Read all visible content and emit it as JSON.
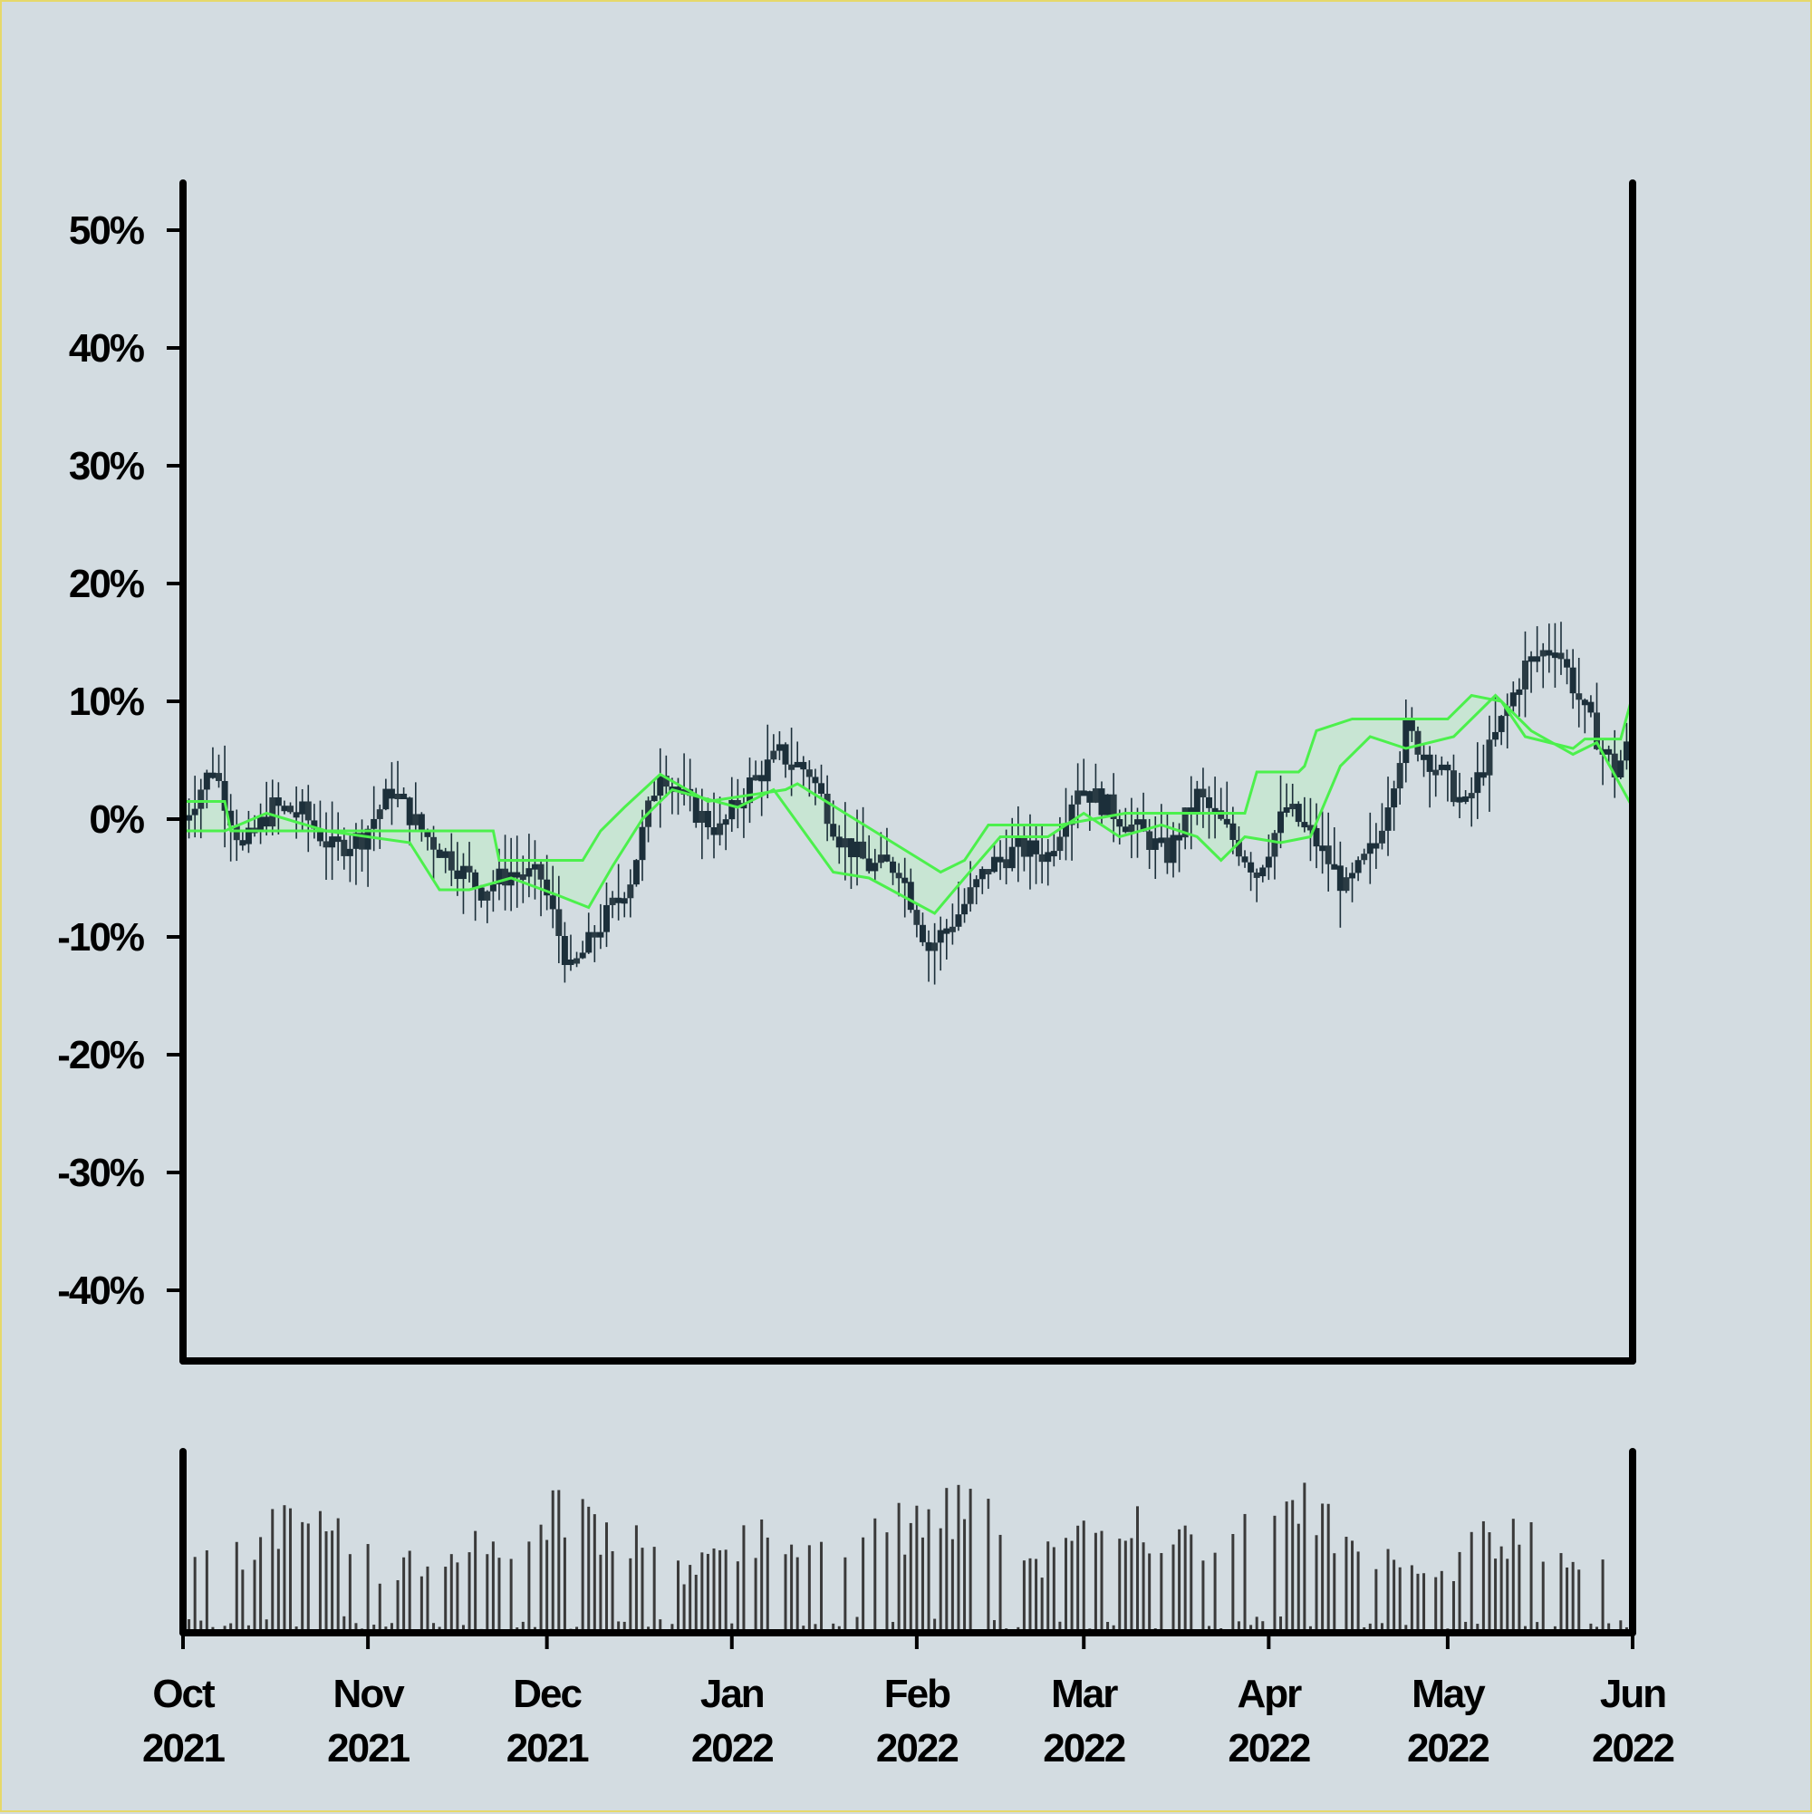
{
  "chart_data": {
    "type": "candlestick",
    "title": "",
    "xlabel": "",
    "ylabel": "",
    "ylim": [
      -46,
      54
    ],
    "xlim": [
      "2021-10-01",
      "2022-06-01"
    ],
    "y_ticks": [
      -40,
      -30,
      -20,
      -10,
      0,
      10,
      20,
      30,
      40,
      50
    ],
    "y_tick_labels": [
      "-40%",
      "-30%",
      "-20%",
      "-10%",
      "0%",
      "10%",
      "20%",
      "30%",
      "40%",
      "50%"
    ],
    "x_ticks": [
      {
        "date": "2021-10-01",
        "month": "Oct",
        "year": "2021"
      },
      {
        "date": "2021-11-01",
        "month": "Nov",
        "year": "2021"
      },
      {
        "date": "2021-12-01",
        "month": "Dec",
        "year": "2021"
      },
      {
        "date": "2022-01-01",
        "month": "Jan",
        "year": "2022"
      },
      {
        "date": "2022-02-01",
        "month": "Feb",
        "year": "2022"
      },
      {
        "date": "2022-03-01",
        "month": "Mar",
        "year": "2022"
      },
      {
        "date": "2022-04-01",
        "month": "Apr",
        "year": "2022"
      },
      {
        "date": "2022-05-01",
        "month": "May",
        "year": "2022"
      },
      {
        "date": "2022-06-01",
        "month": "Jun",
        "year": "2022"
      }
    ],
    "price_series": {
      "dates": [
        "2021-10-01",
        "2021-10-06",
        "2021-10-11",
        "2021-10-16",
        "2021-10-21",
        "2021-10-26",
        "2021-10-31",
        "2021-11-05",
        "2021-11-10",
        "2021-11-15",
        "2021-11-20",
        "2021-11-25",
        "2021-11-30",
        "2021-12-05",
        "2021-12-10",
        "2021-12-15",
        "2021-12-20",
        "2021-12-25",
        "2021-12-30",
        "2022-01-04",
        "2022-01-09",
        "2022-01-14",
        "2022-01-19",
        "2022-01-24",
        "2022-01-29",
        "2022-02-03",
        "2022-02-08",
        "2022-02-13",
        "2022-02-18",
        "2022-02-23",
        "2022-02-28",
        "2022-03-05",
        "2022-03-10",
        "2022-03-15",
        "2022-03-20",
        "2022-03-25",
        "2022-03-30",
        "2022-04-04",
        "2022-04-09",
        "2022-04-14",
        "2022-04-19",
        "2022-04-24",
        "2022-04-29",
        "2022-05-04",
        "2022-05-09",
        "2022-05-14",
        "2022-05-19",
        "2022-05-24",
        "2022-05-29",
        "2022-06-01"
      ],
      "values": [
        0,
        4.5,
        -2.5,
        1,
        0.5,
        -2.5,
        -1.5,
        2.5,
        -1,
        -3.5,
        -6,
        -4.5,
        -5,
        -13,
        -9,
        -5,
        4.5,
        1,
        -1,
        3,
        5.5,
        4,
        -1.5,
        -4,
        -4,
        -11,
        -8,
        -4,
        -2.5,
        -3,
        3,
        1,
        -1,
        -3,
        2,
        -1,
        -4.5,
        1,
        -2,
        -6,
        -2,
        7.5,
        4.5,
        1,
        7,
        13,
        15,
        9,
        4,
        7
      ]
    },
    "band_upper": {
      "dates": [
        "2021-10-01",
        "2021-10-08",
        "2021-10-09",
        "2021-10-30",
        "2021-11-22",
        "2021-11-23",
        "2021-12-07",
        "2021-12-10",
        "2021-12-14",
        "2021-12-20",
        "2021-12-28",
        "2022-01-10",
        "2022-01-12",
        "2022-01-20",
        "2022-02-05",
        "2022-02-09",
        "2022-02-13",
        "2022-02-18",
        "2022-02-25",
        "2022-03-08",
        "2022-03-10",
        "2022-03-28",
        "2022-03-30",
        "2022-04-06",
        "2022-04-07",
        "2022-04-09",
        "2022-04-15",
        "2022-04-17",
        "2022-04-20",
        "2022-05-01",
        "2022-05-05",
        "2022-05-10",
        "2022-05-14",
        "2022-05-22",
        "2022-05-24",
        "2022-05-30",
        "2022-06-01"
      ],
      "values": [
        1.5,
        1.5,
        -1,
        -1,
        -1,
        -3.5,
        -3.5,
        -1,
        1,
        3.8,
        1.5,
        2.5,
        3,
        0.5,
        -4.5,
        -3.5,
        -0.5,
        -0.5,
        -0.5,
        0.5,
        0.5,
        0.5,
        4,
        4,
        4.5,
        7.5,
        8.5,
        8.5,
        8.5,
        8.5,
        10.5,
        10,
        7,
        6,
        6.8,
        6.8,
        10.5
      ]
    },
    "band_lower": {
      "dates": [
        "2021-10-01",
        "2021-10-08",
        "2021-10-15",
        "2021-10-25",
        "2021-11-01",
        "2021-11-08",
        "2021-11-13",
        "2021-11-18",
        "2021-11-25",
        "2021-12-03",
        "2021-12-08",
        "2021-12-12",
        "2021-12-17",
        "2021-12-22",
        "2022-01-02",
        "2022-01-08",
        "2022-01-18",
        "2022-01-24",
        "2022-02-04",
        "2022-02-09",
        "2022-02-15",
        "2022-02-23",
        "2022-03-01",
        "2022-03-07",
        "2022-03-14",
        "2022-03-20",
        "2022-03-24",
        "2022-03-28",
        "2022-04-03",
        "2022-04-08",
        "2022-04-13",
        "2022-04-18",
        "2022-04-24",
        "2022-05-02",
        "2022-05-09",
        "2022-05-15",
        "2022-05-22",
        "2022-05-26",
        "2022-06-01"
      ],
      "values": [
        -1,
        -1,
        0.5,
        -1,
        -1.5,
        -2,
        -6,
        -6,
        -5,
        -6.5,
        -7.5,
        -4,
        0,
        2.5,
        1,
        2.5,
        -4.5,
        -5,
        -8,
        -5,
        -1.5,
        -1.5,
        0.5,
        -1.5,
        -0.5,
        -1.5,
        -3.5,
        -1.5,
        -2,
        -1.5,
        4.5,
        7,
        6,
        7,
        10.5,
        7.5,
        5.5,
        6.5,
        1
      ]
    },
    "volume": {
      "dates": [
        "2021-10-01",
        "2021-10-08",
        "2021-10-15",
        "2021-10-22",
        "2021-10-29",
        "2021-11-05",
        "2021-11-12",
        "2021-11-19",
        "2021-11-26",
        "2021-12-03",
        "2021-12-10",
        "2021-12-17",
        "2021-12-24",
        "2021-12-31",
        "2022-01-07",
        "2022-01-14",
        "2022-01-21",
        "2022-01-28",
        "2022-02-04",
        "2022-02-11",
        "2022-02-18",
        "2022-02-25",
        "2022-03-04",
        "2022-03-11",
        "2022-03-18",
        "2022-03-25",
        "2022-04-01",
        "2022-04-08",
        "2022-04-15",
        "2022-04-22",
        "2022-04-29",
        "2022-05-06",
        "2022-05-13",
        "2022-05-20",
        "2022-05-27",
        "2022-06-01"
      ],
      "values": [
        0.9,
        0.5,
        0.75,
        0.85,
        0.7,
        0.45,
        0.6,
        0.65,
        0.6,
        0.95,
        0.8,
        0.7,
        0.45,
        0.6,
        0.75,
        0.55,
        0.7,
        0.8,
        0.85,
        1.0,
        0.5,
        0.65,
        0.75,
        0.85,
        0.7,
        0.65,
        0.9,
        0.95,
        0.6,
        0.55,
        0.4,
        0.7,
        0.8,
        0.55,
        0.5,
        0.6
      ]
    },
    "colors": {
      "background": "#d3dce1",
      "axis": "#000000",
      "candle": "#1c2f3a",
      "wick": "#1c2f3a",
      "band_line": "#4cf04c",
      "band_fill": "#c6e6d0",
      "volume_bar": "#3a3a3a"
    },
    "grid": false,
    "legend": "none"
  }
}
